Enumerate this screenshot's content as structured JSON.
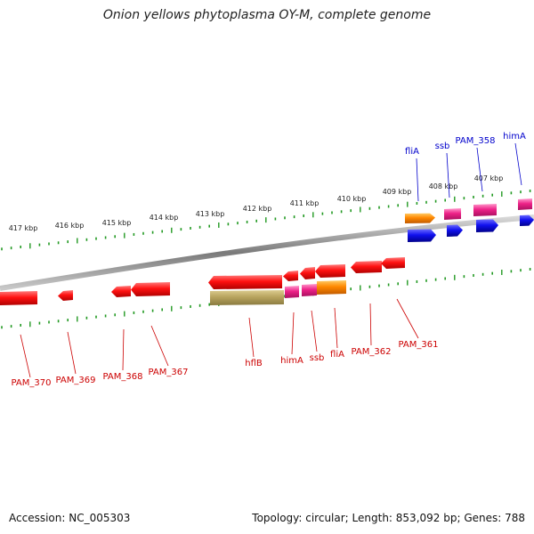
{
  "title": "Onion yellows phytoplasma OY-M, complete genome",
  "footer": {
    "accession": "Accession: NC_005303",
    "topology": "Topology: circular; Length: 853,092 bp; Genes: 788"
  },
  "colors": {
    "red": "#ee1111",
    "magenta": "#ee2288",
    "blue": "#1010ee",
    "orange": "#ff8800",
    "olive": "#b8a45e",
    "tick": "#229922",
    "label_red": "#cc0000",
    "label_blue": "#0000cc",
    "backbone": "#8a8a8a"
  },
  "kbp_labels": [
    "417 kbp",
    "416 kbp",
    "415 kbp",
    "414 kbp",
    "413 kbp",
    "412 kbp",
    "411 kbp",
    "410 kbp",
    "409 kbp",
    "408 kbp",
    "407 kbp"
  ],
  "top_labels": [
    "fliA",
    "ssb",
    "PAM_358",
    "himA"
  ],
  "bottom_labels": [
    "PAM_370",
    "PAM_369",
    "PAM_368",
    "PAM_367",
    "hflB",
    "himA",
    "ssb",
    "fliA",
    "PAM_362",
    "PAM_361"
  ]
}
